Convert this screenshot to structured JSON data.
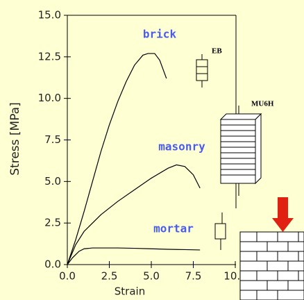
{
  "chart_data": {
    "type": "line",
    "xlabel": "Strain",
    "ylabel": "Stress [MPa]",
    "xlim": [
      0,
      10
    ],
    "ylim": [
      0,
      15
    ],
    "xticks": [
      {
        "value": 0,
        "label": "0.0"
      },
      {
        "value": 2.5,
        "label": "2.5"
      },
      {
        "value": 5,
        "label": "5.0"
      },
      {
        "value": 7.5,
        "label": "7.5"
      },
      {
        "value": 10,
        "label": "10.0"
      }
    ],
    "yticks": [
      {
        "value": 0,
        "label": "0.0"
      },
      {
        "value": 2.5,
        "label": "2.5"
      },
      {
        "value": 5,
        "label": "5.0"
      },
      {
        "value": 7.5,
        "label": "7.5"
      },
      {
        "value": 10,
        "label": "10.0"
      },
      {
        "value": 12.5,
        "label": "12.5"
      },
      {
        "value": 15,
        "label": "15.0"
      }
    ],
    "annotations": [
      "EB",
      "MU6H"
    ],
    "series": [
      {
        "name": "brick",
        "color": "#000000",
        "x": [
          0,
          0.5,
          1,
          1.5,
          2,
          2.5,
          3,
          3.5,
          4,
          4.5,
          4.8,
          5.2,
          5.5,
          5.9
        ],
        "values": [
          0,
          1.5,
          3.2,
          5,
          6.8,
          8.4,
          9.8,
          11,
          12,
          12.6,
          12.7,
          12.7,
          12.3,
          11.2
        ]
      },
      {
        "name": "masonry",
        "color": "#000000",
        "x": [
          0,
          0.5,
          1,
          2,
          3,
          4,
          5,
          6,
          6.5,
          7,
          7.5,
          7.9
        ],
        "values": [
          0,
          1.2,
          2,
          3,
          3.8,
          4.5,
          5.2,
          5.8,
          6.0,
          5.9,
          5.4,
          4.6
        ]
      },
      {
        "name": "mortar",
        "color": "#000000",
        "x": [
          0,
          0.3,
          0.7,
          1,
          1.5,
          2,
          3,
          4,
          5,
          6,
          7,
          7.9
        ],
        "values": [
          0,
          0.4,
          0.8,
          0.95,
          1.0,
          1.0,
          1.0,
          0.98,
          0.95,
          0.92,
          0.9,
          0.88
        ]
      }
    ]
  }
}
